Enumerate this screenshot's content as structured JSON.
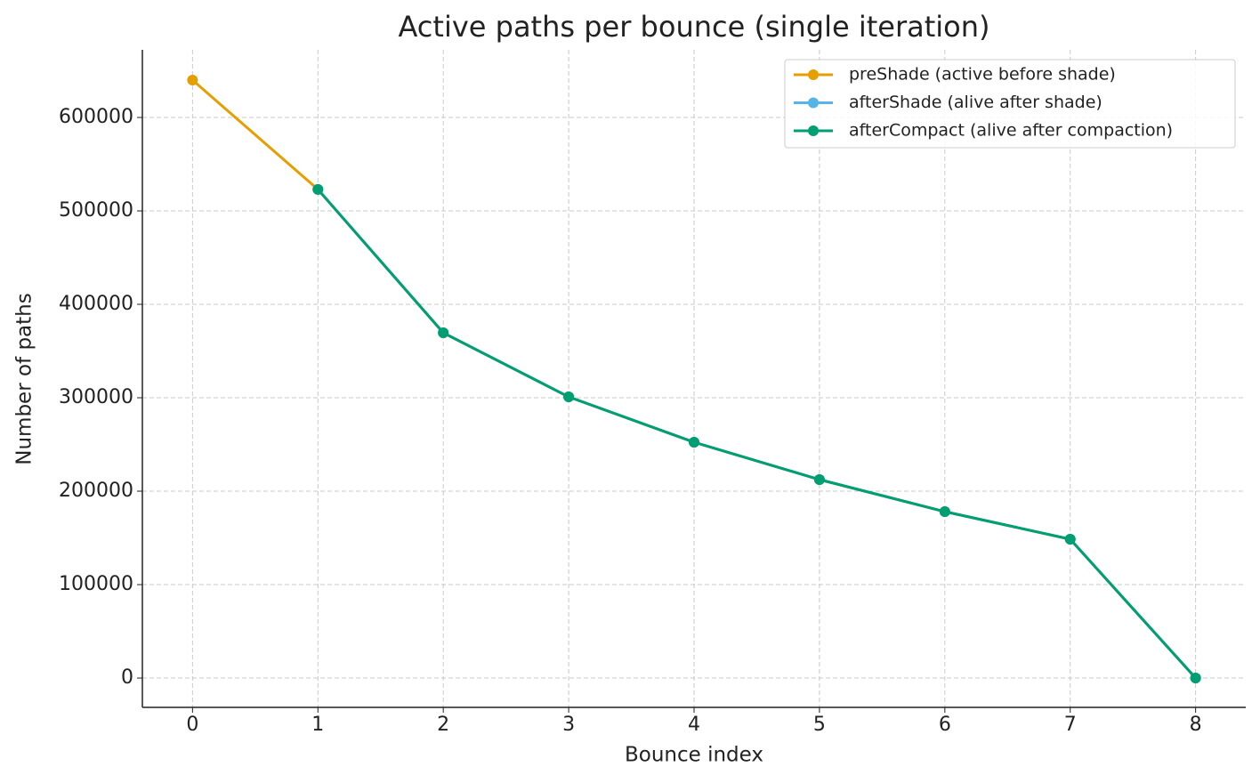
{
  "chart_data": {
    "type": "line",
    "title": "Active paths per bounce (single iteration)",
    "x_label": "Bounce index",
    "y_label": "Number of paths",
    "x": [
      0,
      1,
      2,
      3,
      4,
      5,
      6,
      7,
      8
    ],
    "series": [
      {
        "name": "preShade (active before shade)",
        "color": "#E69F00",
        "values": [
          640000,
          523000,
          369500,
          301000,
          252400,
          212400,
          178100,
          148600,
          0
        ]
      },
      {
        "name": "afterShade (alive after shade)",
        "color": "#56B4E9",
        "values": [
          null,
          523000,
          369500,
          301000,
          252400,
          212400,
          178100,
          148600,
          0
        ]
      },
      {
        "name": "afterCompact (alive after compaction)",
        "color": "#009E73",
        "values": [
          null,
          523000,
          369500,
          301000,
          252400,
          212400,
          178100,
          148600,
          0
        ]
      }
    ],
    "xlim": [
      -0.4,
      8.4
    ],
    "xticks": [
      0,
      1,
      2,
      3,
      4,
      5,
      6,
      7,
      8
    ],
    "ylim": [
      -31400,
      672400
    ],
    "yticks": [
      0,
      100000,
      200000,
      300000,
      400000,
      500000,
      600000
    ],
    "grid": true,
    "legend": "upper right"
  }
}
